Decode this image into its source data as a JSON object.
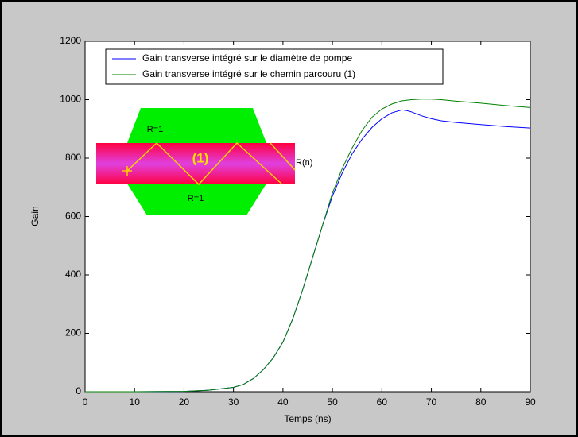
{
  "chart_data": {
    "type": "line",
    "xlabel": "Temps (ns)",
    "ylabel": "Gain",
    "x": [
      0,
      10,
      20,
      25,
      30,
      32,
      34,
      36,
      38,
      40,
      42,
      44,
      46,
      48,
      50,
      52,
      54,
      56,
      58,
      60,
      62,
      64,
      65,
      66,
      68,
      70,
      72,
      75,
      80,
      85,
      90
    ],
    "series": [
      {
        "name": "Gain transverse intégré sur le diamètre de pompe",
        "color": "#0000ff",
        "values": [
          0,
          0,
          1,
          5,
          15,
          25,
          45,
          75,
          115,
          170,
          250,
          350,
          460,
          570,
          670,
          750,
          815,
          865,
          905,
          935,
          955,
          965,
          963,
          958,
          945,
          935,
          928,
          922,
          915,
          908,
          903
        ]
      },
      {
        "name": "Gain transverse intégré sur le chemin parcouru (1)",
        "color": "#008000",
        "values": [
          0,
          0,
          1,
          5,
          15,
          25,
          45,
          75,
          115,
          170,
          250,
          350,
          460,
          570,
          680,
          765,
          835,
          895,
          940,
          968,
          985,
          996,
          998,
          1000,
          1002,
          1002,
          1000,
          995,
          988,
          980,
          973
        ]
      }
    ],
    "xlim": [
      0,
      90
    ],
    "xticks": [
      0,
      10,
      20,
      30,
      40,
      50,
      60,
      70,
      80,
      90
    ],
    "ylim": [
      0,
      1200
    ],
    "yticks": [
      0,
      200,
      400,
      600,
      800,
      1000,
      1200
    ],
    "legend": "upper left",
    "annotations": [
      "R=1",
      "(1)",
      "R(n)",
      "R=1"
    ]
  }
}
